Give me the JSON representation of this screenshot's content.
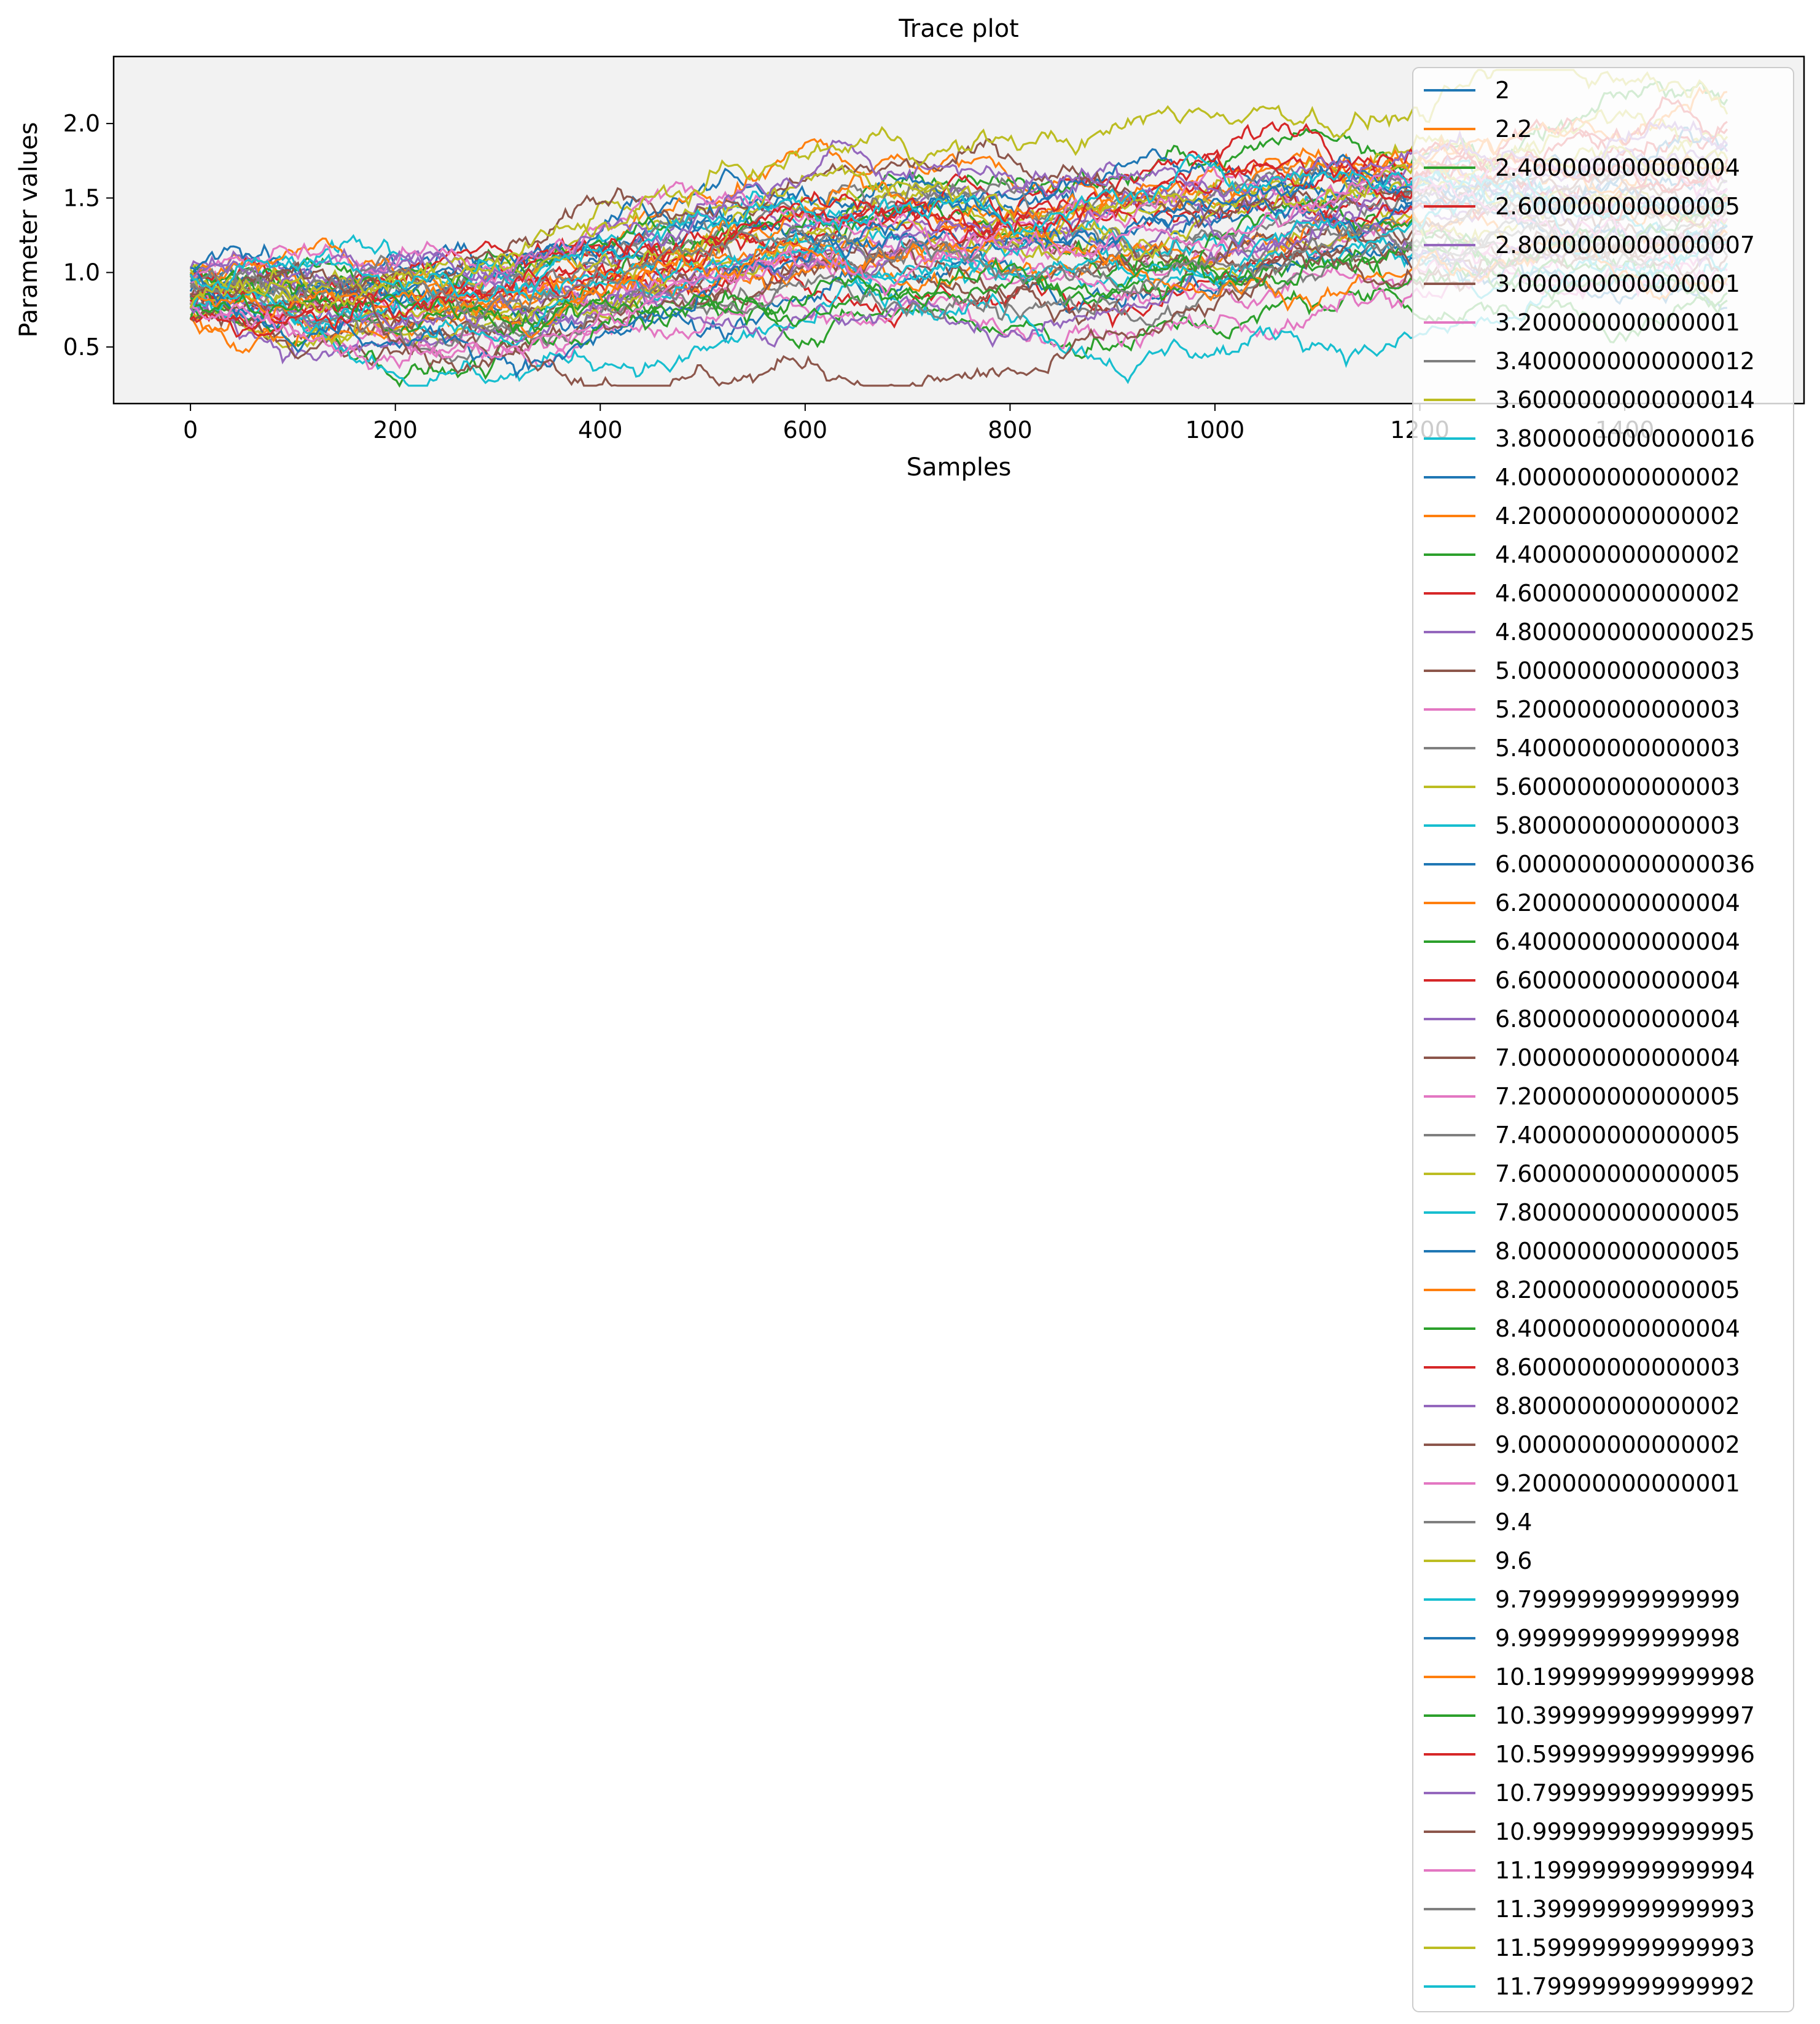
{
  "chart_data": {
    "type": "line",
    "title": "Trace plot",
    "xlabel": "Samples",
    "ylabel": "Parameter values",
    "xlim": [
      -75,
      1575
    ],
    "ylim": [
      0.12,
      2.45
    ],
    "xticks": [
      0,
      200,
      400,
      600,
      800,
      1000,
      1200,
      1400
    ],
    "xtick_labels": [
      "0",
      "200",
      "400",
      "600",
      "800",
      "1000",
      "1200",
      "1400"
    ],
    "yticks": [
      0.5,
      1.0,
      1.5,
      2.0
    ],
    "ytick_labels": [
      "0.5",
      "1.0",
      "1.5",
      "2.0"
    ],
    "x_range": [
      0,
      1500
    ],
    "plot_background": "#f2f2f2",
    "grid": false,
    "legend_position": "right, overflowing below the axes",
    "colors": [
      "#1f77b4",
      "#ff7f0e",
      "#2ca02c",
      "#d62728",
      "#9467bd",
      "#8c564b",
      "#e377c2",
      "#7f7f7f",
      "#bcbd22",
      "#17becf"
    ],
    "series_note": "50 random-walk trace series; start near 0.6–1.05 at sample 0, drift upward to about 0.8–2.35 by sample 1500",
    "series": [
      {
        "name": "2",
        "end": 1.7
      },
      {
        "name": "2.2",
        "end": 1.55
      },
      {
        "name": "2.400000000000004",
        "end": 2.2
      },
      {
        "name": "2.600000000000005",
        "end": 2.05
      },
      {
        "name": "2.8000000000000007",
        "end": 1.65
      },
      {
        "name": "3.000000000000001",
        "end": 1.4
      },
      {
        "name": "3.200000000000001",
        "end": 1.2
      },
      {
        "name": "3.4000000000000012",
        "end": 1.5
      },
      {
        "name": "3.6000000000000014",
        "end": 1.95
      },
      {
        "name": "3.8000000000000016",
        "end": 1.1
      },
      {
        "name": "4.000000000000002",
        "end": 0.8
      },
      {
        "name": "4.200000000000002",
        "end": 1.3
      },
      {
        "name": "4.400000000000002",
        "end": 0.85
      },
      {
        "name": "4.600000000000002",
        "end": 1.8
      },
      {
        "name": "4.8000000000000025",
        "end": 1.6
      },
      {
        "name": "5.000000000000003",
        "end": 1.25
      },
      {
        "name": "5.200000000000003",
        "end": 1.05
      },
      {
        "name": "5.400000000000003",
        "end": 1.45
      },
      {
        "name": "5.600000000000003",
        "end": 1.75
      },
      {
        "name": "5.800000000000003",
        "end": 1.35
      },
      {
        "name": "6.0000000000000036",
        "end": 1.9
      },
      {
        "name": "6.200000000000004",
        "end": 2.25
      },
      {
        "name": "6.400000000000004",
        "end": 1.0
      },
      {
        "name": "6.600000000000004",
        "end": 1.55
      },
      {
        "name": "6.800000000000004",
        "end": 1.85
      },
      {
        "name": "7.000000000000004",
        "end": 1.15
      },
      {
        "name": "7.200000000000005",
        "end": 0.95
      },
      {
        "name": "7.400000000000005",
        "end": 1.65
      },
      {
        "name": "7.600000000000005",
        "end": 1.4
      },
      {
        "name": "7.800000000000005",
        "end": 1.25
      },
      {
        "name": "8.000000000000005",
        "end": 1.5
      },
      {
        "name": "8.200000000000005",
        "end": 1.7
      },
      {
        "name": "8.400000000000004",
        "end": 0.9
      },
      {
        "name": "8.600000000000003",
        "end": 2.0
      },
      {
        "name": "8.800000000000002",
        "end": 1.2
      },
      {
        "name": "9.000000000000002",
        "end": 1.45
      },
      {
        "name": "9.200000000000001",
        "end": 1.6
      },
      {
        "name": "9.4",
        "end": 1.3
      },
      {
        "name": "9.6",
        "end": 1.8
      },
      {
        "name": "9.799999999999999",
        "end": 1.1
      },
      {
        "name": "9.999999999999998",
        "end": 1.35
      },
      {
        "name": "10.199999999999998",
        "end": 1.0
      },
      {
        "name": "10.399999999999997",
        "end": 1.55
      },
      {
        "name": "10.599999999999996",
        "end": 1.75
      },
      {
        "name": "10.799999999999995",
        "end": 1.9
      },
      {
        "name": "10.999999999999995",
        "end": 1.25
      },
      {
        "name": "11.199999999999994",
        "end": 1.4
      },
      {
        "name": "11.399999999999993",
        "end": 1.15
      },
      {
        "name": "11.599999999999993",
        "end": 2.1
      },
      {
        "name": "11.799999999999992",
        "end": 1.5
      }
    ]
  }
}
